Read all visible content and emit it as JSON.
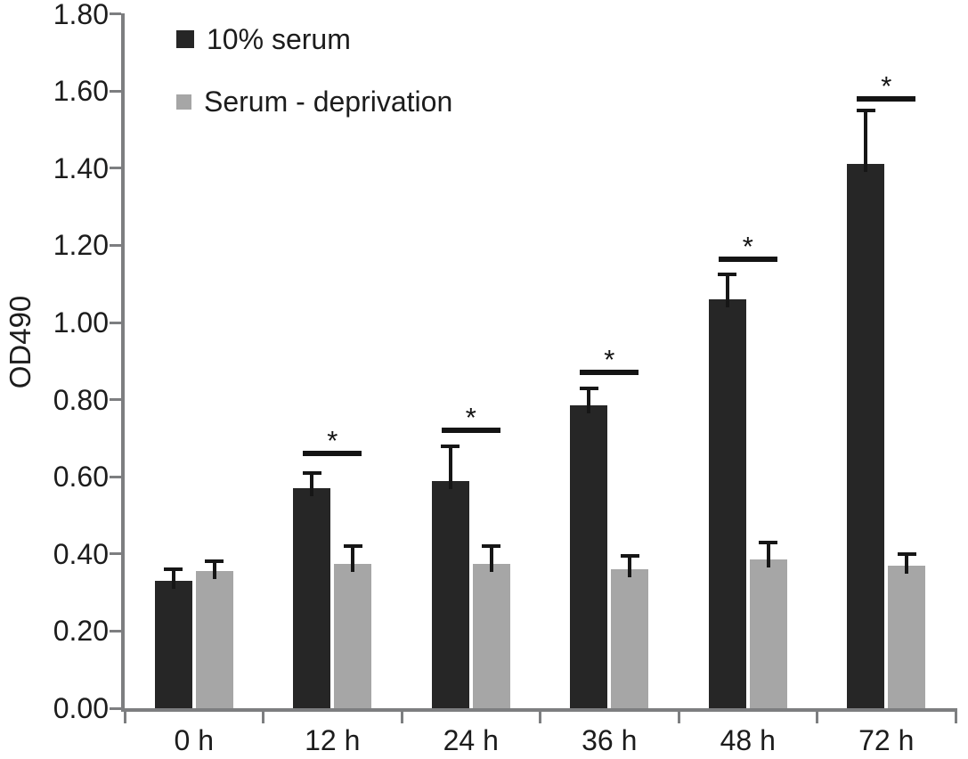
{
  "chart_data": {
    "type": "bar",
    "title": "",
    "ylabel": "OD490",
    "xlabel": "",
    "categories": [
      "0 h",
      "12 h",
      "24 h",
      "36 h",
      "48 h",
      "72 h"
    ],
    "series": [
      {
        "name": "10% serum",
        "color": "#262626",
        "values": [
          0.33,
          0.57,
          0.59,
          0.785,
          1.06,
          1.41
        ],
        "errors_plus": [
          0.03,
          0.04,
          0.09,
          0.045,
          0.065,
          0.14
        ]
      },
      {
        "name": "Serum - deprivation",
        "color": "#a6a6a6",
        "values": [
          0.355,
          0.375,
          0.375,
          0.36,
          0.385,
          0.37
        ],
        "errors_plus": [
          0.025,
          0.045,
          0.045,
          0.035,
          0.045,
          0.03
        ]
      }
    ],
    "ylim": [
      0.0,
      1.8
    ],
    "ytick_step": 0.2,
    "ytick_labels": [
      "0.00",
      "0.20",
      "0.40",
      "0.60",
      "0.80",
      "1.00",
      "1.20",
      "1.40",
      "1.60",
      "1.80"
    ],
    "significance_markers": [
      {
        "category": "12 h",
        "category_index": 1,
        "label": "*",
        "y": 0.66
      },
      {
        "category": "24 h",
        "category_index": 2,
        "label": "*",
        "y": 0.72
      },
      {
        "category": "36 h",
        "category_index": 3,
        "label": "*",
        "y": 0.87
      },
      {
        "category": "48 h",
        "category_index": 4,
        "label": "*",
        "y": 1.165
      },
      {
        "category": "72 h",
        "category_index": 5,
        "label": "*",
        "y": 1.58
      }
    ],
    "legend_position": "top-left-inside",
    "grid": false,
    "axis_color": "#7d7e80",
    "error_bar_color": "#161616",
    "text_color": "#1c1c1c"
  }
}
